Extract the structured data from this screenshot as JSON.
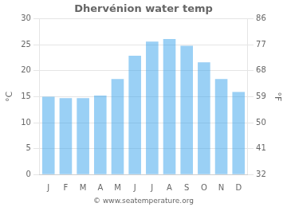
{
  "chart_data": {
    "type": "bar",
    "title": "Dhervénion water temp",
    "categories": [
      "J",
      "F",
      "M",
      "A",
      "M",
      "J",
      "J",
      "A",
      "S",
      "O",
      "N",
      "D"
    ],
    "values": [
      15.0,
      14.7,
      14.7,
      15.2,
      18.4,
      22.9,
      25.6,
      26.1,
      24.8,
      21.6,
      18.4,
      15.9
    ],
    "ylabel": "°C",
    "ylim": [
      0,
      30
    ],
    "yticks": [
      0,
      5,
      10,
      15,
      20,
      25,
      30
    ],
    "y2label": "°F",
    "y2lim": [
      32,
      86
    ],
    "y2ticks": [
      32,
      41,
      50,
      59,
      68,
      77,
      86
    ],
    "grid": true,
    "annotation": "© www.seatemperature.org"
  }
}
